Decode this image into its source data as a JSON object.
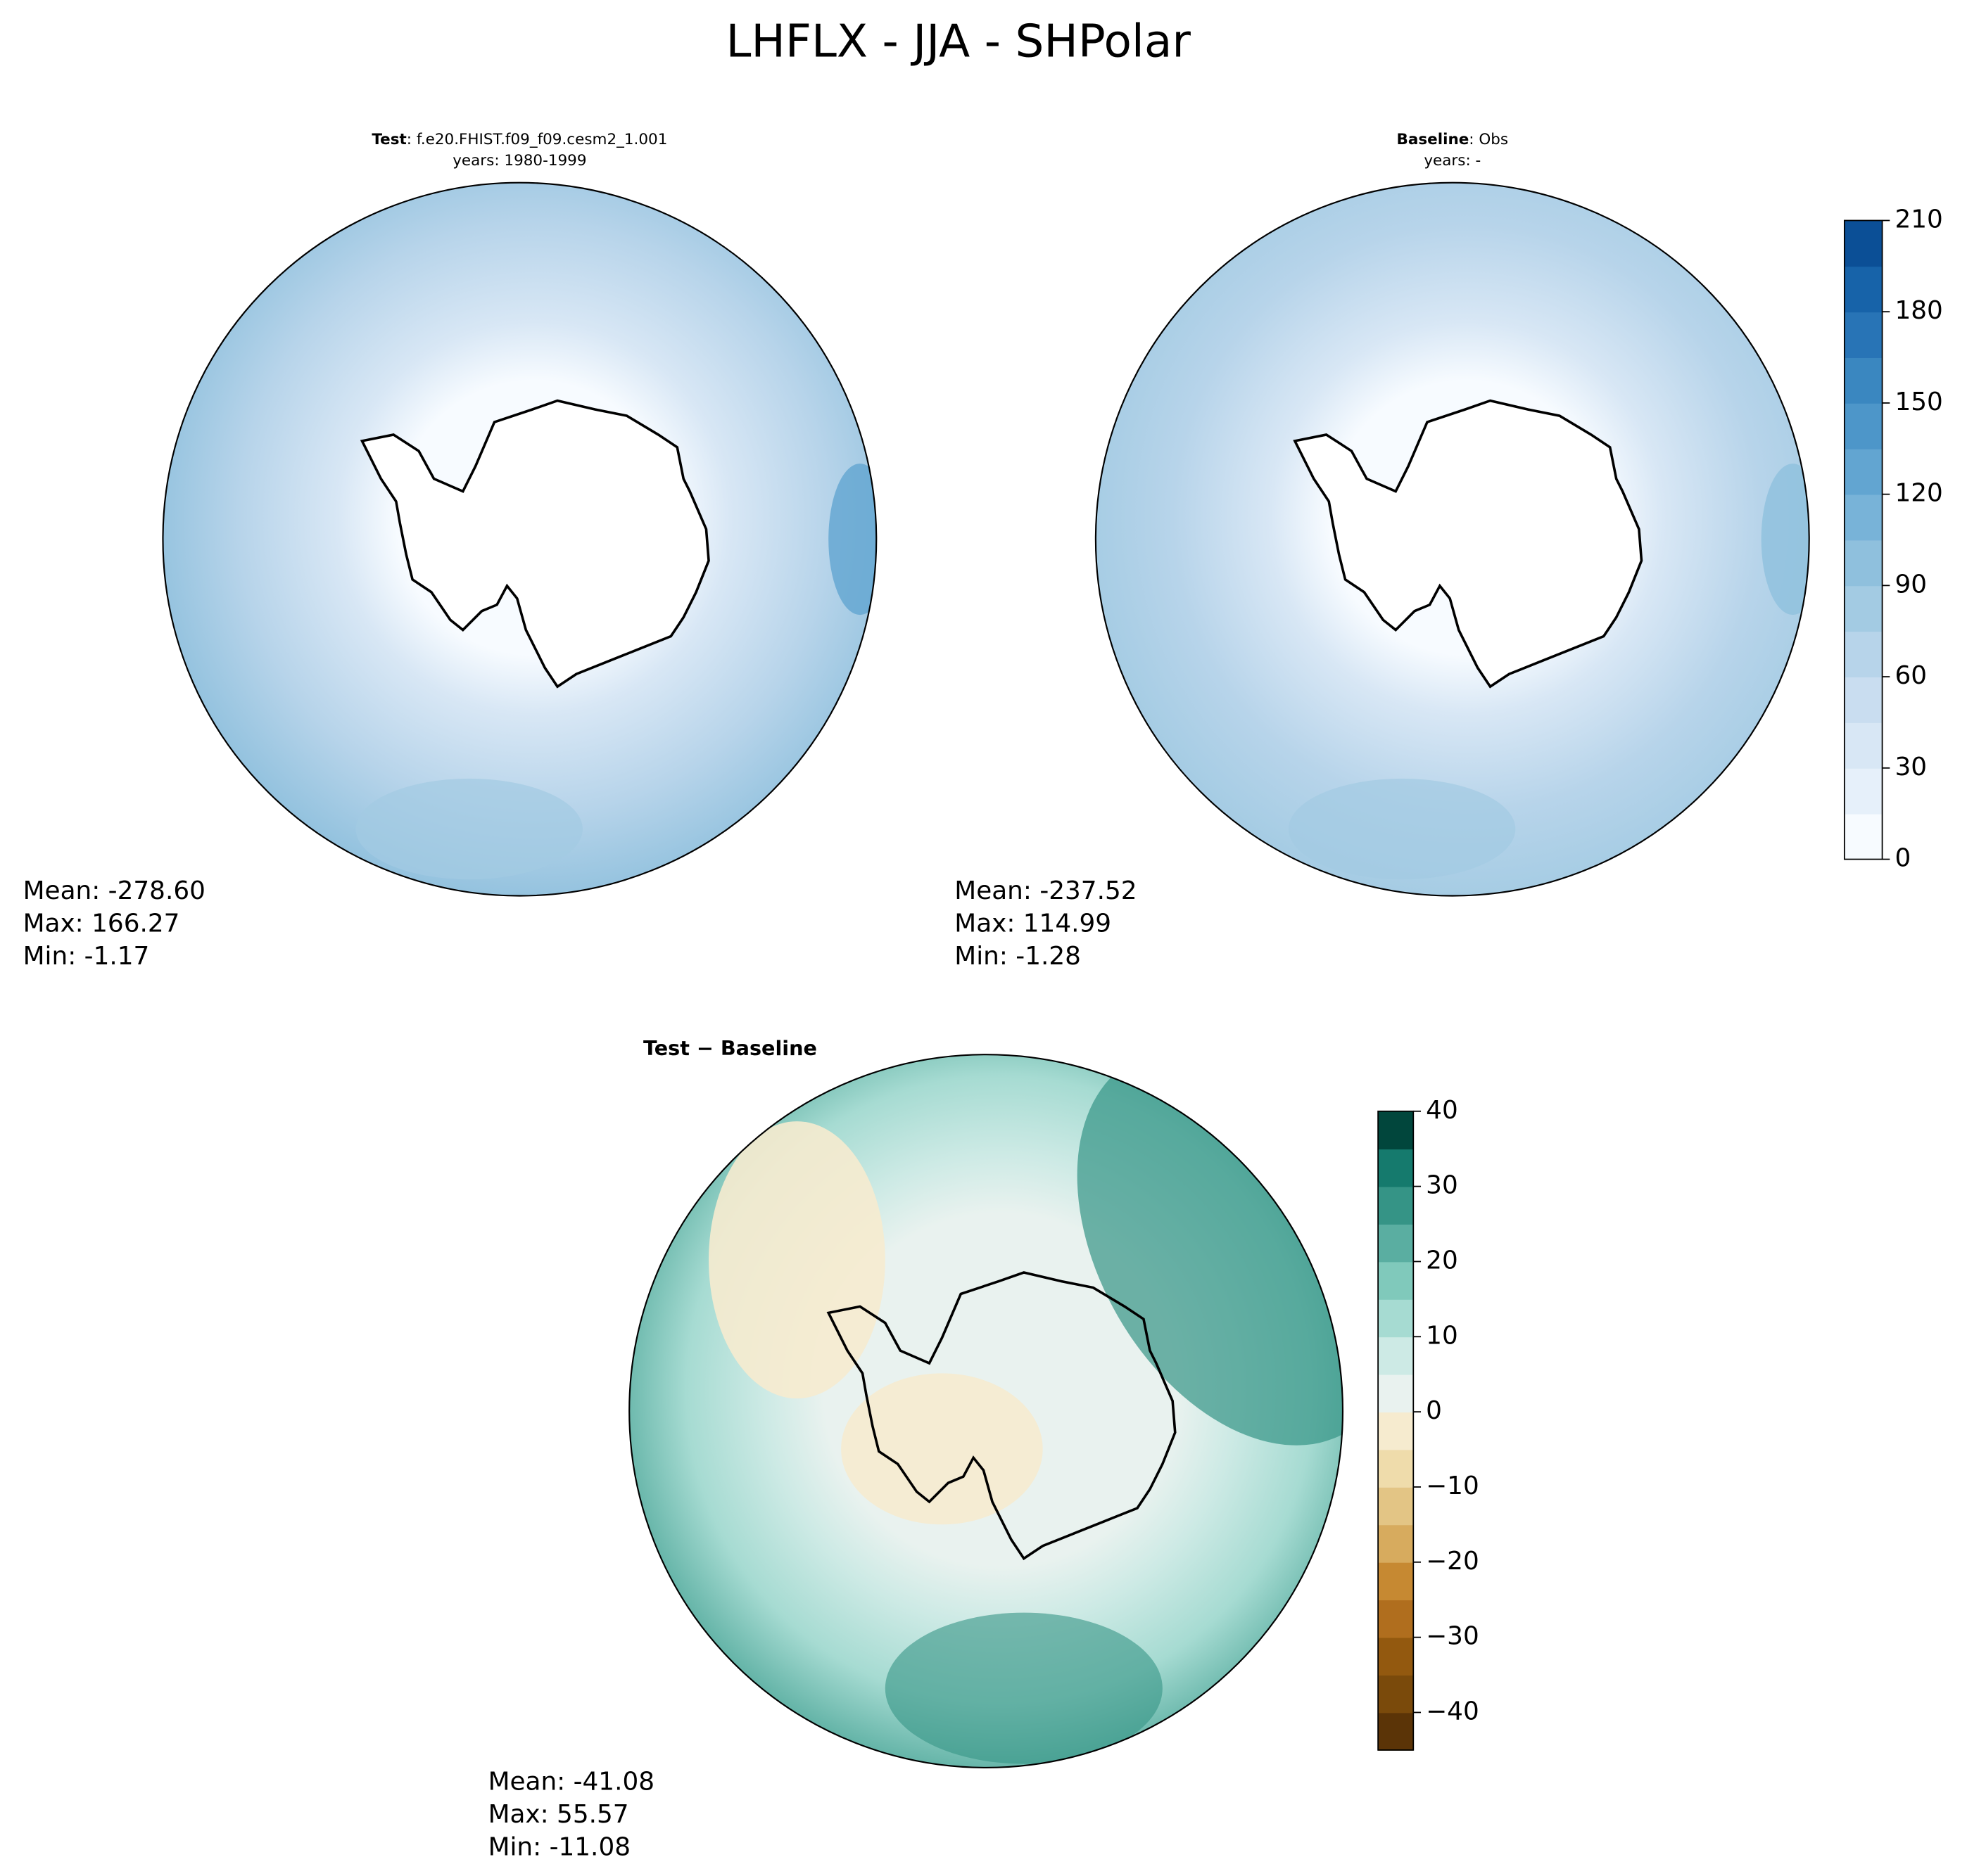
{
  "title": "LHFLX - JJA - SHPolar",
  "panels": [
    {
      "title_bold": "Test",
      "title_rest": ": f.e20.FHIST.f09_f09.cesm2_1.001",
      "subtitle": "years: 1980-1999",
      "stats": [
        "Mean: -278.60",
        "Max: 166.27",
        "Min: -1.17"
      ]
    },
    {
      "title_bold": "Baseline",
      "title_rest": ": Obs",
      "subtitle": "years: -",
      "stats": [
        "Mean: -237.52",
        "Max: 114.99",
        "Min: -1.28"
      ]
    },
    {
      "title_bold": "Test − Baseline",
      "stats": [
        "Mean: -41.08",
        "Max: 55.57",
        "Min: -11.08"
      ]
    }
  ],
  "colorbars": [
    {
      "lim": [
        0,
        210
      ],
      "ticks": [
        0,
        30,
        60,
        90,
        120,
        150,
        180,
        210
      ],
      "colors": [
        "#f7fbff",
        "#e6f0fa",
        "#d8e7f5",
        "#c9ddf0",
        "#b7d4ea",
        "#a3cbe3",
        "#8fc0dd",
        "#78b3d8",
        "#62a5d1",
        "#4d96c9",
        "#3a87c0",
        "#2874b6",
        "#1763a9",
        "#0b4f96"
      ]
    },
    {
      "lim": [
        -45,
        40
      ],
      "ticks": [
        {
          "value": -40,
          "label": "−40"
        },
        {
          "value": -30,
          "label": "−30"
        },
        {
          "value": -20,
          "label": "−20"
        },
        {
          "value": -10,
          "label": "−10"
        },
        0,
        10,
        20,
        30,
        40
      ],
      "colors": [
        "#5b3407",
        "#7a4a0b",
        "#93590f",
        "#b06e1e",
        "#c68932",
        "#d7ab5e",
        "#e3c585",
        "#efdcab",
        "#f6ebcf",
        "#e9f2ef",
        "#cdeae5",
        "#a6dbd2",
        "#80c9bb",
        "#5aaea1",
        "#359486",
        "#157a6d",
        "#01463c"
      ]
    }
  ]
}
